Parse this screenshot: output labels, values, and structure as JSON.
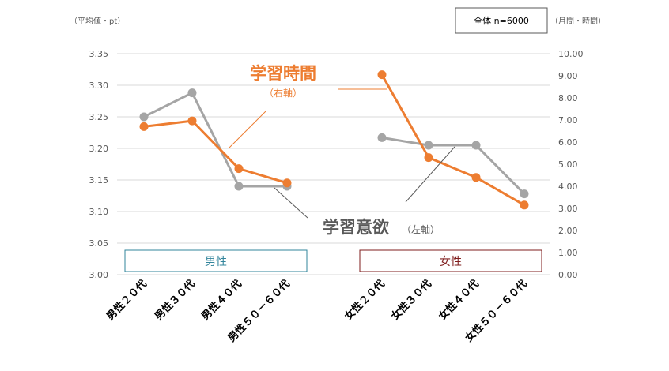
{
  "chart_data": {
    "type": "line",
    "legend_box": "全体 n=6000",
    "y_left_unit": "（平均値・pt）",
    "y_right_unit": "（月間・時間）",
    "y_left": {
      "min": 3.0,
      "max": 3.35,
      "ticks": [
        "3.00",
        "3.05",
        "3.10",
        "3.15",
        "3.20",
        "3.25",
        "3.30",
        "3.35"
      ]
    },
    "y_right": {
      "min": 0,
      "max": 10,
      "ticks": [
        "0.00",
        "1.00",
        "2.00",
        "3.00",
        "4.00",
        "5.00",
        "6.00",
        "7.00",
        "8.00",
        "9.00",
        "10.00"
      ]
    },
    "groups": [
      {
        "label": "男性",
        "color": "#31849b",
        "categories": [
          "男性２０代",
          "男性３０代",
          "男性４０代",
          "男性５０－６０代"
        ]
      },
      {
        "label": "女性",
        "color": "#7f1d1d",
        "categories": [
          "女性２０代",
          "女性３０代",
          "女性４０代",
          "女性５０－６０代"
        ]
      }
    ],
    "series": [
      {
        "name": "学習時間",
        "axis_note": "（右軸）",
        "axis": "right",
        "color": "#ed7d31",
        "groups": [
          [
            6.7,
            6.96,
            4.8,
            4.15
          ],
          [
            9.05,
            5.3,
            4.4,
            3.15
          ]
        ]
      },
      {
        "name": "学習意欲",
        "axis_note": "（左軸）",
        "axis": "left",
        "color": "#a5a5a5",
        "groups": [
          [
            3.25,
            3.288,
            3.14,
            3.14
          ],
          [
            3.217,
            3.205,
            3.205,
            3.128
          ]
        ]
      }
    ]
  }
}
